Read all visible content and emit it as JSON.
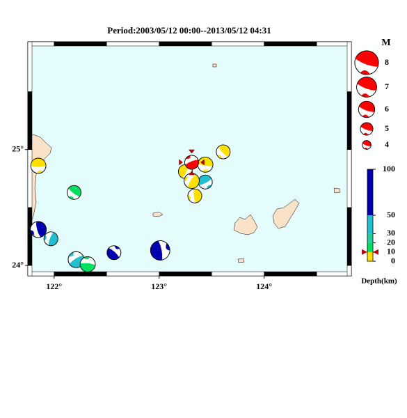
{
  "title": "Period:2003/05/12 00:00--2013/05/12 04:31",
  "map": {
    "lonlim": [
      121.75,
      124.83
    ],
    "latlim": [
      23.91,
      25.93
    ],
    "lonticks": [
      {
        "value": 122,
        "label": "122°"
      },
      {
        "value": 123,
        "label": "123°"
      },
      {
        "value": 124,
        "label": "124°"
      }
    ],
    "latticks": [
      {
        "value": 24,
        "label": "24°"
      },
      {
        "value": 25,
        "label": "25°"
      }
    ],
    "water_color": "#e4fdfc",
    "land_color": "#f9e2c8"
  },
  "magnitude_legend": {
    "title": "M",
    "values": [
      8,
      7,
      6,
      5,
      4
    ]
  },
  "depth_scale": {
    "label": "Depth(km)",
    "lim": [
      0,
      100
    ],
    "ticks": [
      0,
      10,
      20,
      30,
      50,
      100
    ],
    "bands": [
      {
        "from": 0,
        "to": 10,
        "color": "#ffe000"
      },
      {
        "from": 10,
        "to": 20,
        "color": "#00e060"
      },
      {
        "from": 20,
        "to": 30,
        "color": "#20d0a0"
      },
      {
        "from": 30,
        "to": 50,
        "color": "#20c0d0"
      },
      {
        "from": 50,
        "to": 100,
        "color": "#0000b0"
      }
    ],
    "latest_marker": 10,
    "latest_color": "#ff0000"
  },
  "events": [
    {
      "lon": 121.85,
      "lat": 24.86,
      "depth": 5,
      "mag": 5.3
    },
    {
      "lon": 122.19,
      "lat": 24.63,
      "depth": 15,
      "mag": 5.0
    },
    {
      "lon": 121.85,
      "lat": 24.31,
      "depth": 70,
      "mag": 5.5
    },
    {
      "lon": 121.97,
      "lat": 24.23,
      "depth": 35,
      "mag": 5.0
    },
    {
      "lon": 122.21,
      "lat": 24.05,
      "depth": 35,
      "mag": 5.5
    },
    {
      "lon": 122.32,
      "lat": 24.01,
      "depth": 15,
      "mag": 5.3
    },
    {
      "lon": 122.57,
      "lat": 24.11,
      "depth": 70,
      "mag": 5.0
    },
    {
      "lon": 123.01,
      "lat": 24.13,
      "depth": 70,
      "mag": 6.3
    },
    {
      "lon": 123.25,
      "lat": 24.81,
      "depth": 5,
      "mag": 5.0
    },
    {
      "lon": 123.44,
      "lat": 24.72,
      "depth": 35,
      "mag": 5.0
    },
    {
      "lon": 123.44,
      "lat": 24.87,
      "depth": 5,
      "mag": 5.3
    },
    {
      "lon": 123.61,
      "lat": 24.98,
      "depth": 5,
      "mag": 5.0
    },
    {
      "lon": 123.34,
      "lat": 24.6,
      "depth": 5,
      "mag": 5.0
    },
    {
      "lon": 123.31,
      "lat": 24.73,
      "depth": 5,
      "mag": 5.3
    },
    {
      "lon": 123.31,
      "lat": 24.89,
      "depth": 10,
      "mag": 5.0,
      "latest": true
    }
  ]
}
